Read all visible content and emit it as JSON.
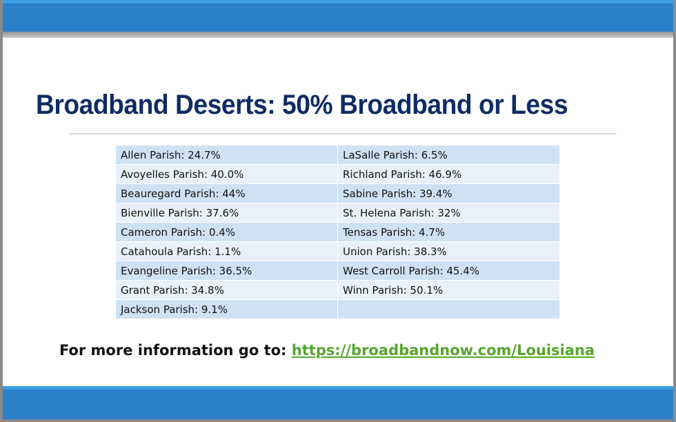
{
  "slide": {
    "title": "Broadband Deserts: 50% Broadband or Less",
    "table": {
      "rows": [
        [
          "Allen Parish: 24.7%",
          "LaSalle Parish: 6.5%"
        ],
        [
          "Avoyelles Parish: 40.0%",
          "Richland Parish: 46.9%"
        ],
        [
          "Beauregard Parish: 44%",
          "Sabine Parish: 39.4%"
        ],
        [
          "Bienville Parish: 37.6%",
          "St. Helena Parish: 32%"
        ],
        [
          "Cameron Parish: 0.4%",
          "Tensas Parish: 4.7%"
        ],
        [
          "Catahoula Parish: 1.1%",
          "Union Parish: 38.3%"
        ],
        [
          "Evangeline Parish: 36.5%",
          "West Carroll Parish: 45.4%"
        ],
        [
          "Grant Parish: 34.8%",
          "Winn Parish: 50.1%"
        ],
        [
          "Jackson Parish: 9.1%",
          ""
        ]
      ]
    },
    "info_text": "For more information go to:",
    "info_link": "https://broadbandnow.com/Louisiana"
  },
  "colors": {
    "title": "#0f2c64",
    "band": "#2a7fc9",
    "row_dark": "#cfe2f4",
    "row_light": "#e8f1fa",
    "link": "#56a52e"
  }
}
